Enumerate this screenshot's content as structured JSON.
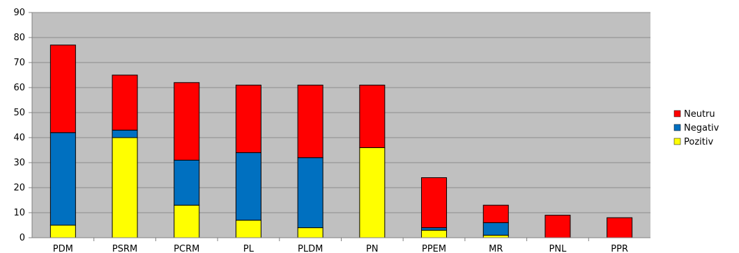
{
  "chart_data": {
    "type": "bar",
    "stacked": true,
    "categories": [
      "PDM",
      "PSRM",
      "PCRM",
      "PL",
      "PLDM",
      "PN",
      "PPEM",
      "MR",
      "PNL",
      "PPR"
    ],
    "series": [
      {
        "name": "Pozitiv",
        "color": "#FFFF00",
        "values": [
          5,
          40,
          13,
          7,
          4,
          36,
          3,
          1,
          0,
          0
        ]
      },
      {
        "name": "Negativ",
        "color": "#0070C0",
        "values": [
          37,
          3,
          18,
          27,
          28,
          0,
          1,
          5,
          0,
          0
        ]
      },
      {
        "name": "Neutru",
        "color": "#FF0000",
        "values": [
          35,
          22,
          31,
          27,
          29,
          25,
          20,
          7,
          9,
          8
        ]
      }
    ],
    "ylim": [
      0,
      90
    ],
    "yticks": [
      0,
      10,
      20,
      30,
      40,
      50,
      60,
      70,
      80,
      90
    ],
    "ytick_labels": [
      "0",
      "10",
      "20",
      "30",
      "40",
      "50",
      "60",
      "70",
      "80",
      "90"
    ],
    "grid": true,
    "plot_background": "#C0C0C0",
    "legend_position": "right",
    "legend_order": [
      "Neutru",
      "Negativ",
      "Pozitiv"
    ],
    "title": "",
    "xlabel": "",
    "ylabel": ""
  }
}
